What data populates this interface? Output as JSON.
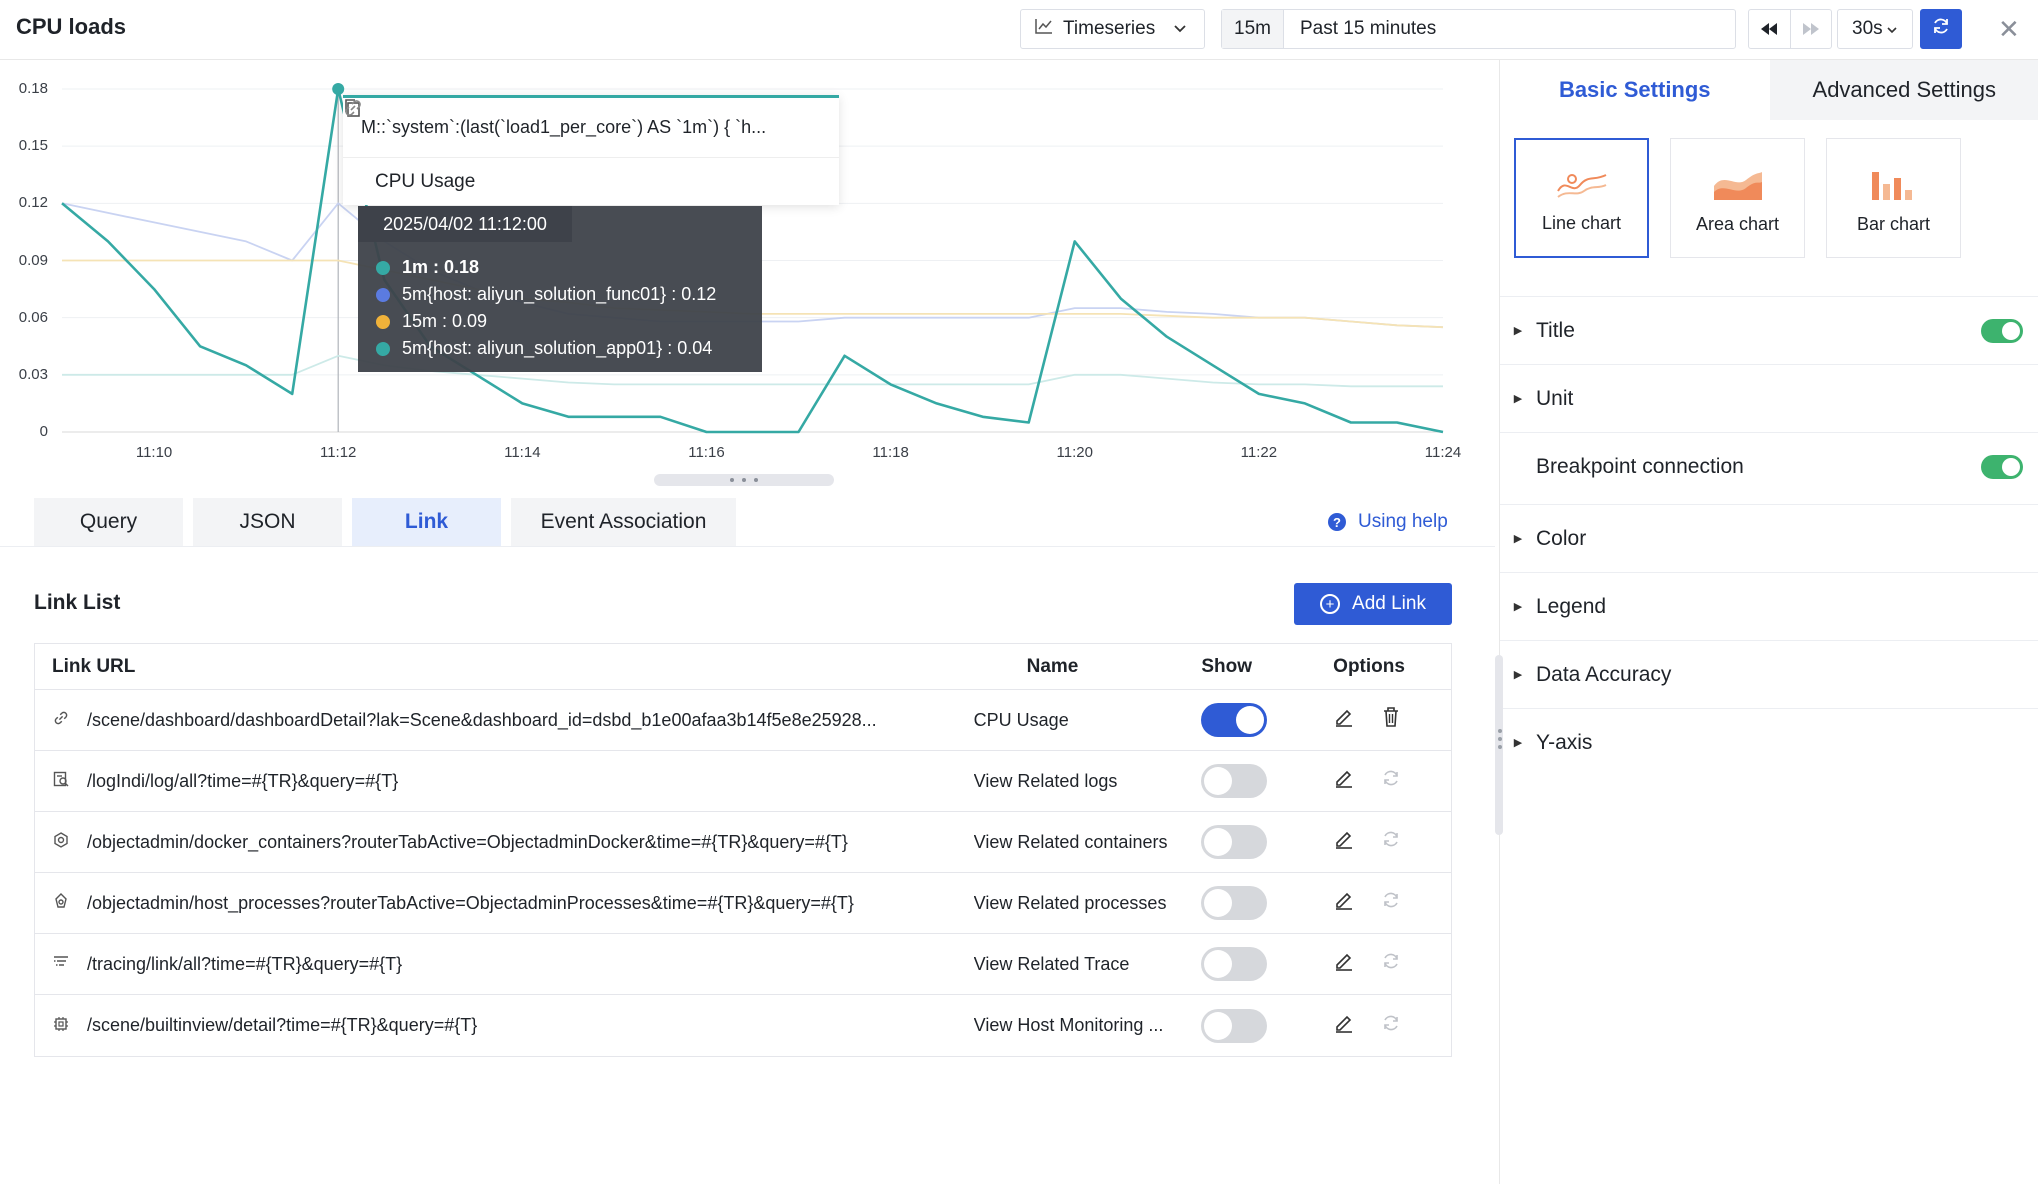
{
  "header": {
    "title": "CPU loads",
    "viz_type": "Timeseries",
    "time_tag": "15m",
    "time_range": "Past 15 minutes",
    "interval": "30s"
  },
  "popover": {
    "query": "M::`system`:(last(`load1_per_core`) AS `1m`) { `h...",
    "link_name": "CPU Usage"
  },
  "tooltip": {
    "date": "2025/04/02 11:12:00",
    "items": [
      {
        "label": "1m : 0.18",
        "color": "#35a9a4",
        "bold": true
      },
      {
        "label": "5m{host: aliyun_solution_func01} : 0.12",
        "color": "#5b7be0",
        "bold": false
      },
      {
        "label": "15m : 0.09",
        "color": "#f0b23a",
        "bold": false
      },
      {
        "label": "5m{host: aliyun_solution_app01} : 0.04",
        "color": "#35a9a4",
        "bold": false
      }
    ]
  },
  "chart_data": {
    "type": "line",
    "x": [
      "11:09",
      "11:09.5",
      "11:10",
      "11:10.5",
      "11:11",
      "11:11.5",
      "11:12",
      "11:12.5",
      "11:13",
      "11:13.5",
      "11:14",
      "11:14.5",
      "11:15",
      "11:15.5",
      "11:16",
      "11:16.5",
      "11:17",
      "11:17.5",
      "11:18",
      "11:18.5",
      "11:19",
      "11:19.5",
      "11:20",
      "11:20.5",
      "11:21",
      "11:21.5",
      "11:22",
      "11:22.5",
      "11:23",
      "11:23.5",
      "11:24"
    ],
    "xticks": [
      "11:10",
      "11:12",
      "11:14",
      "11:16",
      "11:18",
      "11:20",
      "11:22",
      "11:24"
    ],
    "yticks": [
      "0",
      "0.03",
      "0.06",
      "0.09",
      "0.12",
      "0.15",
      "0.18"
    ],
    "ylim": [
      0,
      0.18
    ],
    "series": [
      {
        "name": "1m",
        "color": "#35a9a4",
        "values": [
          0.12,
          0.1,
          0.075,
          0.045,
          0.035,
          0.02,
          0.18,
          0.08,
          0.045,
          0.03,
          0.015,
          0.008,
          0.008,
          0.008,
          0.0,
          0.0,
          0.0,
          0.04,
          0.025,
          0.015,
          0.008,
          0.005,
          0.1,
          0.07,
          0.05,
          0.035,
          0.02,
          0.015,
          0.005,
          0.005,
          0.0
        ]
      },
      {
        "name": "5m{host: aliyun_solution_func01}",
        "color": "#c9d3f2",
        "values": [
          0.12,
          0.115,
          0.11,
          0.105,
          0.1,
          0.09,
          0.12,
          0.1,
          0.085,
          0.075,
          0.068,
          0.062,
          0.06,
          0.058,
          0.058,
          0.058,
          0.058,
          0.06,
          0.06,
          0.06,
          0.06,
          0.06,
          0.065,
          0.065,
          0.063,
          0.062,
          0.06,
          0.06,
          0.058,
          0.056,
          0.055
        ]
      },
      {
        "name": "15m",
        "color": "#f5e3b5",
        "values": [
          0.09,
          0.09,
          0.09,
          0.09,
          0.09,
          0.09,
          0.09,
          0.085,
          0.08,
          0.075,
          0.07,
          0.068,
          0.065,
          0.064,
          0.063,
          0.062,
          0.062,
          0.062,
          0.062,
          0.062,
          0.062,
          0.062,
          0.062,
          0.062,
          0.061,
          0.06,
          0.06,
          0.06,
          0.058,
          0.056,
          0.055
        ]
      },
      {
        "name": "5m{host: aliyun_solution_app01}",
        "color": "#cdeae8",
        "values": [
          0.03,
          0.03,
          0.03,
          0.03,
          0.03,
          0.03,
          0.04,
          0.035,
          0.032,
          0.03,
          0.028,
          0.026,
          0.025,
          0.025,
          0.025,
          0.025,
          0.025,
          0.025,
          0.025,
          0.025,
          0.025,
          0.025,
          0.03,
          0.03,
          0.028,
          0.026,
          0.025,
          0.025,
          0.024,
          0.024,
          0.024
        ]
      }
    ],
    "legend": "none",
    "grid": true
  },
  "tabs": [
    "Query",
    "JSON",
    "Link",
    "Event Association"
  ],
  "help_label": "Using help",
  "link_list": {
    "title": "Link List",
    "add_label": "Add Link",
    "columns": [
      "Link URL",
      "Name",
      "Show",
      "Options"
    ],
    "rows": [
      {
        "icon": "link-icon",
        "url": "/scene/dashboard/dashboardDetail?lak=Scene&dashboard_id=dsbd_b1e00afaa3b14f5e8e25928...",
        "name": "CPU Usage",
        "show": true
      },
      {
        "icon": "log-icon",
        "url": "/logIndi/log/all?time=#{TR}&query=#{T}",
        "name": "View Related logs",
        "show": false
      },
      {
        "icon": "container-icon",
        "url": "/objectadmin/docker_containers?routerTabActive=ObjectadminDocker&time=#{TR}&query=#{T}",
        "name": "View Related containers",
        "show": false
      },
      {
        "icon": "process-icon",
        "url": "/objectadmin/host_processes?routerTabActive=ObjectadminProcesses&time=#{TR}&query=#{T}",
        "name": "View Related processes",
        "show": false
      },
      {
        "icon": "trace-icon",
        "url": "/tracing/link/all?time=#{TR}&query=#{T}",
        "name": "View Related Trace",
        "show": false
      },
      {
        "icon": "host-icon",
        "url": "/scene/builtinview/detail?time=#{TR}&query=#{T}",
        "name": "View Host Monitoring ...",
        "show": false
      }
    ]
  },
  "settings_panel": {
    "tabs": [
      "Basic Settings",
      "Advanced Settings"
    ],
    "chart_types": [
      "Line chart",
      "Area chart",
      "Bar chart"
    ],
    "sections": [
      {
        "label": "Title",
        "toggle": true,
        "arrow": true
      },
      {
        "label": "Unit",
        "toggle": false,
        "arrow": true
      },
      {
        "label": "Breakpoint connection",
        "toggle": true,
        "arrow": false
      },
      {
        "label": "Color",
        "toggle": false,
        "arrow": true
      },
      {
        "label": "Legend",
        "toggle": false,
        "arrow": true
      },
      {
        "label": "Data Accuracy",
        "toggle": false,
        "arrow": true
      },
      {
        "label": "Y-axis",
        "toggle": false,
        "arrow": true
      }
    ]
  }
}
